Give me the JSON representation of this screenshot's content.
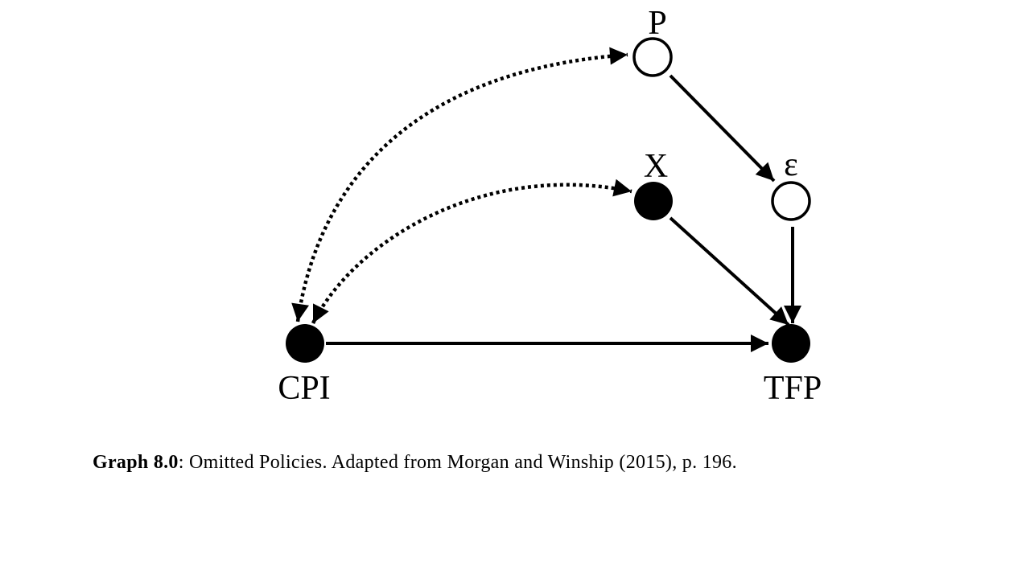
{
  "nodes": [
    {
      "id": "P",
      "label": "P",
      "filled": false
    },
    {
      "id": "epsilon",
      "label": "ε",
      "filled": false
    },
    {
      "id": "X",
      "label": "X",
      "filled": true
    },
    {
      "id": "CPI",
      "label": "CPI",
      "filled": true
    },
    {
      "id": "TFP",
      "label": "TFP",
      "filled": true
    }
  ],
  "edges": [
    {
      "from": "CPI",
      "to": "TFP",
      "style": "solid",
      "direction": "forward"
    },
    {
      "from": "X",
      "to": "TFP",
      "style": "solid",
      "direction": "forward"
    },
    {
      "from": "epsilon",
      "to": "TFP",
      "style": "solid",
      "direction": "forward"
    },
    {
      "from": "P",
      "to": "epsilon",
      "style": "solid",
      "direction": "forward"
    },
    {
      "from": "CPI",
      "to": "X",
      "style": "dotted",
      "direction": "bidirected"
    },
    {
      "from": "CPI",
      "to": "P",
      "style": "dotted",
      "direction": "bidirected"
    }
  ],
  "caption": {
    "bold": "Graph 8.0",
    "text": ": Omitted Policies. Adapted from Morgan and Winship (2015), p. 196."
  }
}
